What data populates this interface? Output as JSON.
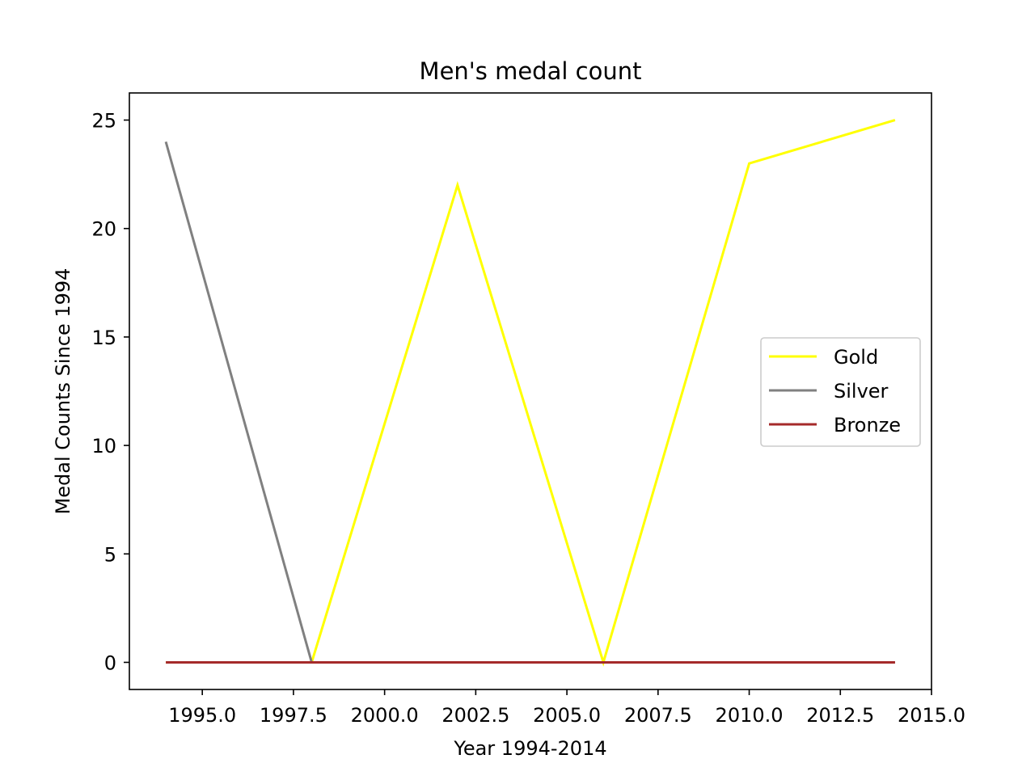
{
  "chart_data": {
    "type": "line",
    "title": "Men's medal count",
    "xlabel": "Year 1994-2014",
    "ylabel": "Medal Counts Since 1994",
    "x": [
      1994,
      1998,
      2002,
      2006,
      2010,
      2014
    ],
    "xlim": [
      1993.0,
      2015.0
    ],
    "ylim": [
      -1.25,
      26.25
    ],
    "x_ticks": [
      1995.0,
      1997.5,
      2000.0,
      2002.5,
      2005.0,
      2007.5,
      2010.0,
      2012.5,
      2015.0
    ],
    "x_tick_labels": [
      "1995.0",
      "1997.5",
      "2000.0",
      "2002.5",
      "2005.0",
      "2007.5",
      "2010.0",
      "2012.5",
      "2015.0"
    ],
    "y_ticks": [
      0,
      5,
      10,
      15,
      20,
      25
    ],
    "y_tick_labels": [
      "0",
      "5",
      "10",
      "15",
      "20",
      "25"
    ],
    "grid": false,
    "legend_position": "right",
    "series": [
      {
        "name": "Gold",
        "color": "#ffff00",
        "values": [
          0,
          0,
          22,
          0,
          23,
          25
        ]
      },
      {
        "name": "Silver",
        "color": "#808080",
        "values": [
          24,
          0,
          0,
          0,
          0,
          0
        ]
      },
      {
        "name": "Bronze",
        "color": "#a52a2a",
        "values": [
          0,
          0,
          0,
          0,
          0,
          0
        ]
      }
    ]
  }
}
